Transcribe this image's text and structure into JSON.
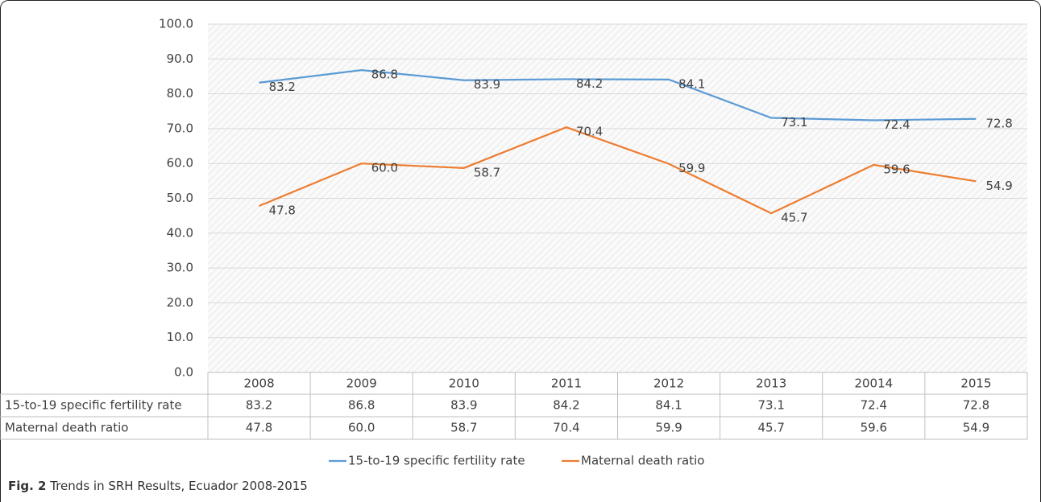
{
  "chart_data": {
    "type": "line",
    "categories": [
      "2008",
      "2009",
      "2010",
      "2011",
      "2012",
      "2013",
      "20014",
      "2015"
    ],
    "series": [
      {
        "name": "15-to-19 specific fertility rate",
        "color": "#5b9bd5",
        "values": [
          83.2,
          86.8,
          83.9,
          84.2,
          84.1,
          73.1,
          72.4,
          72.8
        ],
        "value_labels": [
          "83.2",
          "86.8",
          "83.9",
          "84.2",
          "84.1",
          "73.1",
          "72.4",
          "72.8"
        ]
      },
      {
        "name": "Maternal death ratio",
        "color": "#ed7d31",
        "values": [
          47.8,
          60,
          58.7,
          70.4,
          59.9,
          45.7,
          59.6,
          54.9
        ],
        "value_labels": [
          "47.8",
          "60.0",
          "58.7",
          "70.4",
          "59.9",
          "45.7",
          "59.6",
          "54.9"
        ]
      }
    ],
    "ylim": [
      0,
      100
    ],
    "yticks": [
      {
        "value": 0,
        "label": "0.0"
      },
      {
        "value": 10,
        "label": "10.0"
      },
      {
        "value": 20,
        "label": "20.0"
      },
      {
        "value": 30,
        "label": "30.0"
      },
      {
        "value": 40,
        "label": "40.0"
      },
      {
        "value": 50,
        "label": "50.0"
      },
      {
        "value": 60,
        "label": "60.0"
      },
      {
        "value": 70,
        "label": "70.0"
      },
      {
        "value": 80,
        "label": "80.0"
      },
      {
        "value": 90,
        "label": "90.0"
      },
      {
        "value": 100,
        "label": "100.0"
      }
    ],
    "grid": true,
    "figure_label": "Fig. 2",
    "caption": "Trends in SRH Results, Ecuador 2008-2015"
  }
}
